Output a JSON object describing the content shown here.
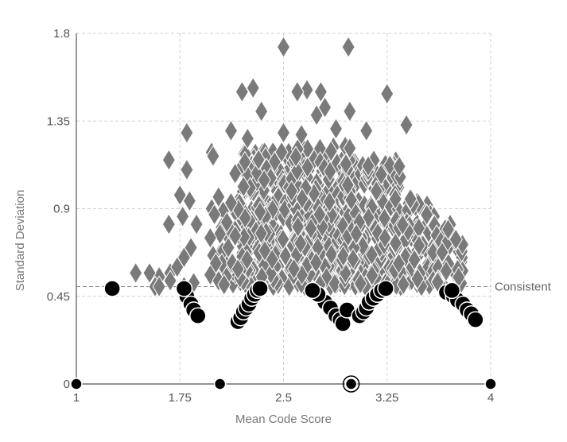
{
  "chart_data": {
    "type": "scatter",
    "title": "",
    "xlabel": "Mean Code Score",
    "ylabel": "Standard Deviation",
    "xlim": [
      1,
      4
    ],
    "ylim": [
      0,
      1.8
    ],
    "x_ticks": [
      1,
      1.75,
      2.5,
      3.25,
      4
    ],
    "x_tick_labels": [
      "1",
      "1.75",
      "2.5",
      "3.25",
      "4"
    ],
    "y_ticks": [
      0,
      0.45,
      0.9,
      1.35,
      1.8
    ],
    "y_tick_labels": [
      "0",
      "0.45",
      "0.9",
      "1.35",
      "1.8"
    ],
    "grid": true,
    "reference_line": {
      "y": 0.5,
      "label": "Consistent"
    },
    "colors": {
      "diamond_fill": "#7a7a7a",
      "diamond_stroke": "#ffffff",
      "circle_fill": "#000000",
      "circle_stroke": "#ffffff",
      "grid": "#d0d0d0",
      "axis": "#555555",
      "reference": "#888888"
    },
    "series": [
      {
        "marker": "diamond",
        "points": [
          [
            2.5,
            1.73
          ],
          [
            2.97,
            1.73
          ],
          [
            2.2,
            1.5
          ],
          [
            2.28,
            1.52
          ],
          [
            2.67,
            1.51
          ],
          [
            2.77,
            1.5
          ],
          [
            2.6,
            1.5
          ],
          [
            3.25,
            1.49
          ],
          [
            2.8,
            1.42
          ],
          [
            2.74,
            1.38
          ],
          [
            2.98,
            1.4
          ],
          [
            2.34,
            1.4
          ],
          [
            1.8,
            1.29
          ],
          [
            2.12,
            1.3
          ],
          [
            2.5,
            1.29
          ],
          [
            2.88,
            1.31
          ],
          [
            3.1,
            1.3
          ],
          [
            3.39,
            1.33
          ],
          [
            2.24,
            1.26
          ],
          [
            2.63,
            1.28
          ],
          [
            2.98,
            1.21
          ],
          [
            1.67,
            1.15
          ],
          [
            1.67,
            0.82
          ],
          [
            1.68,
            0.57
          ],
          [
            1.6,
            0.55
          ],
          [
            1.53,
            0.57
          ],
          [
            1.43,
            0.57
          ],
          [
            1.57,
            0.5
          ],
          [
            1.68,
            0.53
          ],
          [
            1.75,
            0.97
          ],
          [
            1.8,
            1.1
          ],
          [
            1.77,
            0.86
          ],
          [
            1.73,
            0.6
          ],
          [
            1.78,
            0.65
          ],
          [
            1.82,
            0.94
          ],
          [
            1.83,
            0.7
          ],
          [
            1.87,
            0.82
          ],
          [
            1.98,
            1.19
          ],
          [
            1.99,
            1.17
          ],
          [
            2.03,
            0.96
          ],
          [
            1.98,
            0.9
          ],
          [
            2.0,
            0.87
          ],
          [
            2.04,
            0.77
          ],
          [
            1.97,
            0.75
          ],
          [
            1.99,
            0.66
          ],
          [
            2.01,
            0.62
          ],
          [
            1.97,
            0.56
          ],
          [
            2.03,
            0.53
          ],
          [
            2.09,
            0.83
          ],
          [
            2.12,
            0.93
          ],
          [
            2.15,
            0.76
          ],
          [
            2.1,
            0.7
          ],
          [
            2.13,
            0.62
          ],
          [
            2.17,
            0.59
          ],
          [
            2.15,
            1.08
          ],
          [
            2.22,
            1.14
          ],
          [
            2.07,
            0.51
          ],
          [
            1.85,
            0.52
          ],
          [
            1.78,
            0.5
          ],
          [
            1.6,
            0.5
          ]
        ],
        "clusters": [
          {
            "x_range": [
              2.18,
              2.62
            ],
            "y_range": [
              0.5,
              1.2
            ],
            "count": 230
          },
          {
            "x_range": [
              2.55,
              2.98
            ],
            "y_range": [
              0.5,
              1.22
            ],
            "count": 220
          },
          {
            "x_range": [
              2.92,
              3.35
            ],
            "y_range": [
              0.5,
              1.15
            ],
            "count": 200
          },
          {
            "x_range": [
              3.3,
              3.6
            ],
            "y_range": [
              0.5,
              0.95
            ],
            "count": 95
          },
          {
            "x_range": [
              3.58,
              3.82
            ],
            "y_range": [
              0.5,
              0.82
            ],
            "count": 35
          },
          {
            "x_range": [
              2.05,
              2.25
            ],
            "y_range": [
              0.5,
              0.9
            ],
            "count": 40
          }
        ]
      },
      {
        "marker": "circle",
        "points": [
          [
            1.0,
            0.0
          ],
          [
            2.04,
            0.0
          ],
          [
            2.99,
            0.0
          ],
          [
            4.0,
            0.0
          ],
          [
            1.26,
            0.49
          ],
          [
            1.8,
            0.45
          ],
          [
            1.83,
            0.41
          ],
          [
            1.85,
            0.38
          ],
          [
            1.88,
            0.35
          ],
          [
            1.78,
            0.49
          ],
          [
            2.17,
            0.32
          ],
          [
            2.19,
            0.34
          ],
          [
            2.21,
            0.37
          ],
          [
            2.23,
            0.39
          ],
          [
            2.25,
            0.41
          ],
          [
            2.27,
            0.44
          ],
          [
            2.29,
            0.46
          ],
          [
            2.31,
            0.48
          ],
          [
            2.33,
            0.49
          ],
          [
            2.8,
            0.42
          ],
          [
            2.84,
            0.39
          ],
          [
            2.88,
            0.35
          ],
          [
            2.91,
            0.33
          ],
          [
            2.93,
            0.31
          ],
          [
            2.75,
            0.46
          ],
          [
            2.71,
            0.48
          ],
          [
            2.96,
            0.38
          ],
          [
            3.05,
            0.35
          ],
          [
            3.08,
            0.37
          ],
          [
            3.1,
            0.39
          ],
          [
            3.12,
            0.42
          ],
          [
            3.15,
            0.44
          ],
          [
            3.18,
            0.46
          ],
          [
            3.21,
            0.48
          ],
          [
            3.24,
            0.49
          ],
          [
            3.68,
            0.47
          ],
          [
            3.73,
            0.45
          ],
          [
            3.76,
            0.43
          ],
          [
            3.8,
            0.41
          ],
          [
            3.83,
            0.38
          ],
          [
            3.86,
            0.36
          ],
          [
            3.89,
            0.33
          ],
          [
            3.72,
            0.48
          ]
        ]
      }
    ],
    "highlight": {
      "x": 2.99,
      "y": 0.0
    }
  }
}
